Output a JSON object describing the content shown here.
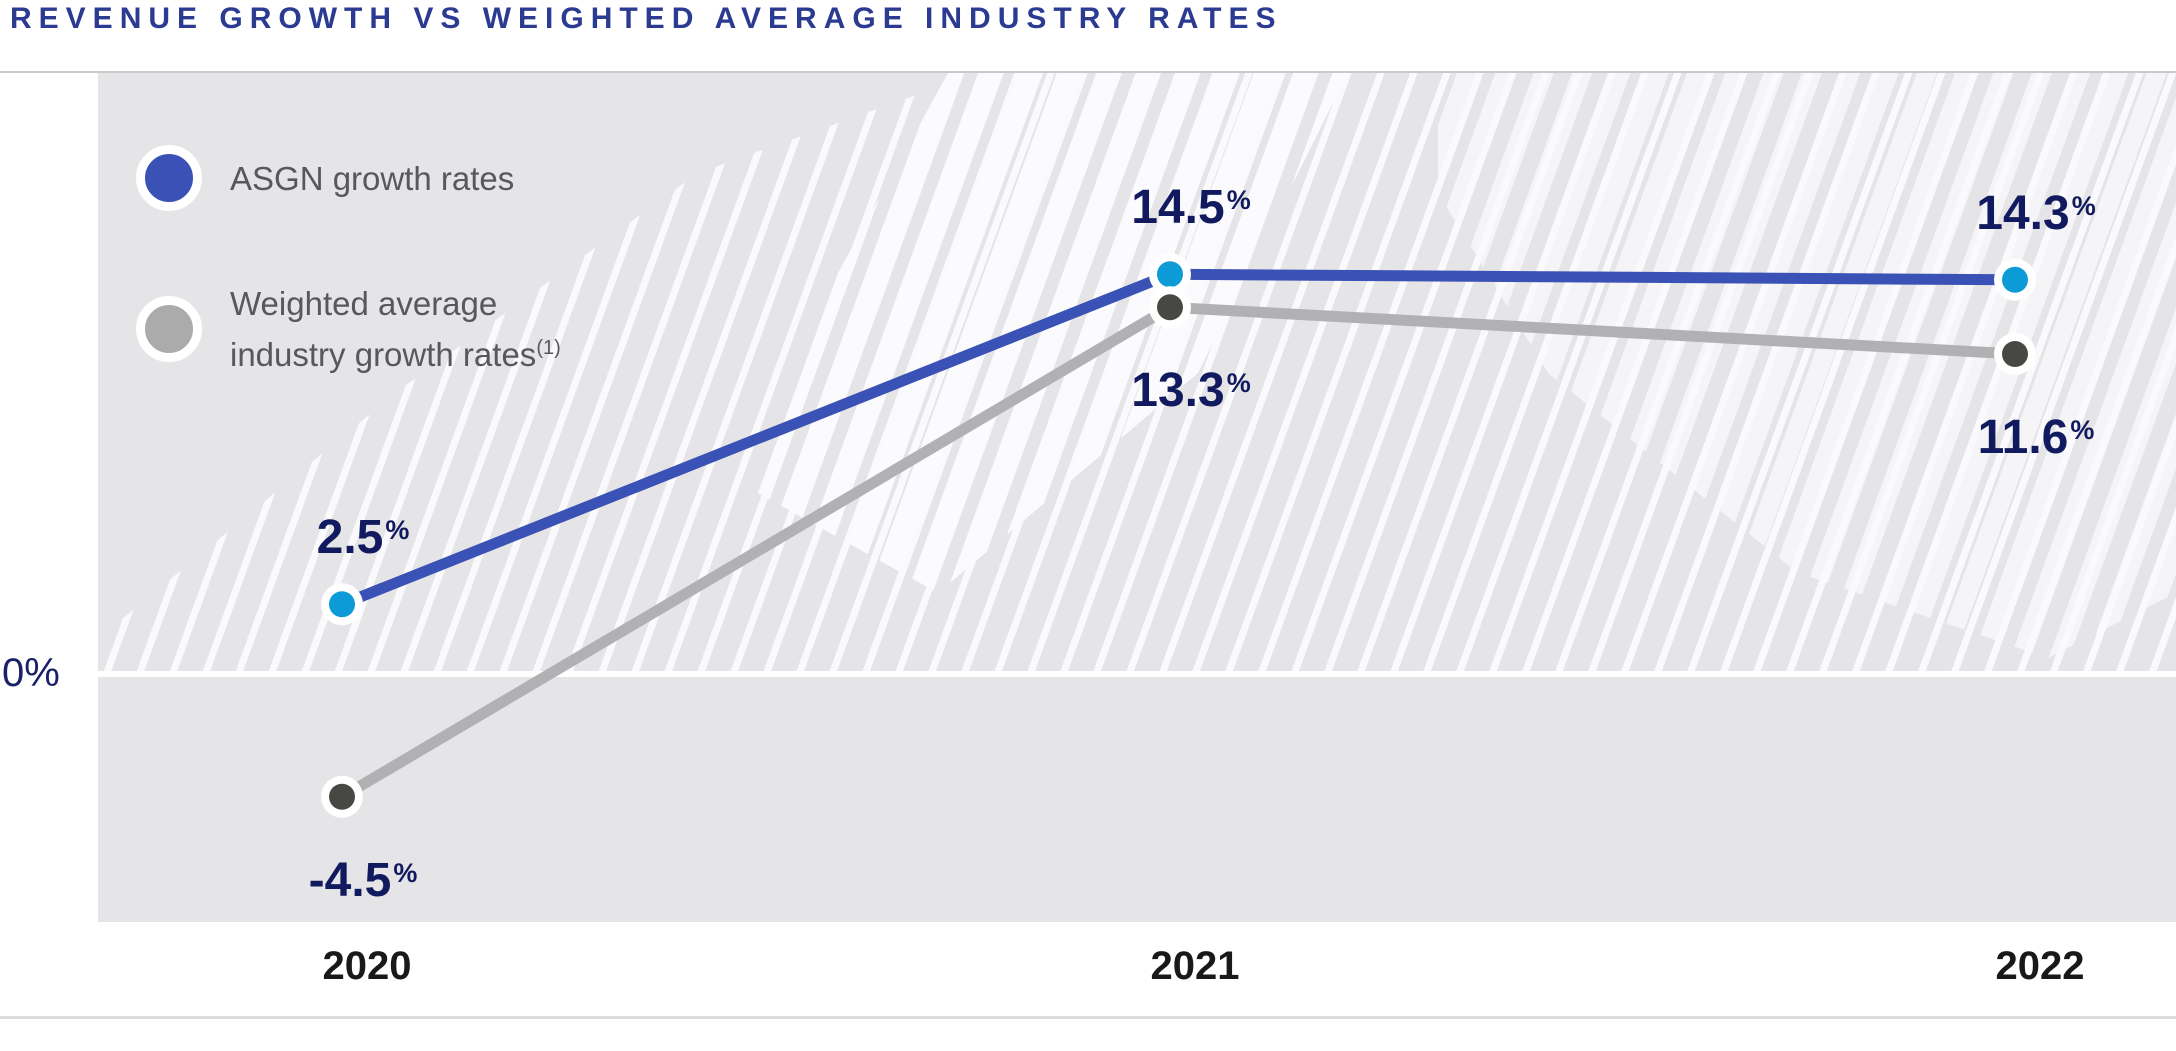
{
  "title": "REVENUE GROWTH VS WEIGHTED AVERAGE INDUSTRY RATES",
  "y_axis": {
    "zero_label": "0%"
  },
  "legend": {
    "items": [
      {
        "label": "ASGN growth rates",
        "dot_color": "#3a51b5"
      },
      {
        "label_line1": "Weighted average",
        "label_line2": "industry growth rates",
        "sup": "(1)",
        "dot_color": "#ababab"
      }
    ]
  },
  "colors": {
    "title_text": "#2c3b92",
    "value_label_text": "#111a5f",
    "axis_year_text": "#191919",
    "legend_text": "#58585a",
    "plot_background": "#e5e5e7",
    "hatch_stripe": "#fafafc",
    "zero_line": "#ffffff",
    "asgn_line": "#3a51b5",
    "asgn_marker": "#0d9bd7",
    "industry_line": "#b1b1b3",
    "industry_marker": "#474744"
  },
  "chart_data": {
    "type": "line",
    "title": "REVENUE GROWTH VS WEIGHTED AVERAGE INDUSTRY RATES",
    "categories": [
      "2020",
      "2021",
      "2022"
    ],
    "series": [
      {
        "name": "ASGN growth rates",
        "values": [
          2.5,
          14.5,
          14.3
        ],
        "labels": [
          "2.5",
          "14.5",
          "14.3"
        ],
        "line_color": "#3a51b5",
        "marker_color": "#0d9bd7",
        "label_position": "above"
      },
      {
        "name": "Weighted average industry growth rates (1)",
        "values": [
          -4.5,
          13.3,
          11.6
        ],
        "labels": [
          "-4.5",
          "13.3",
          "11.6"
        ],
        "line_color": "#b1b1b3",
        "marker_color": "#474744",
        "label_position": "below"
      }
    ],
    "unit_suffix": "%",
    "xlabel": "",
    "ylabel": "",
    "ylim": [
      -9,
      22
    ],
    "grid": "zero-line-only",
    "zero_gridline_label": "0%",
    "legend_position": "top-left"
  }
}
